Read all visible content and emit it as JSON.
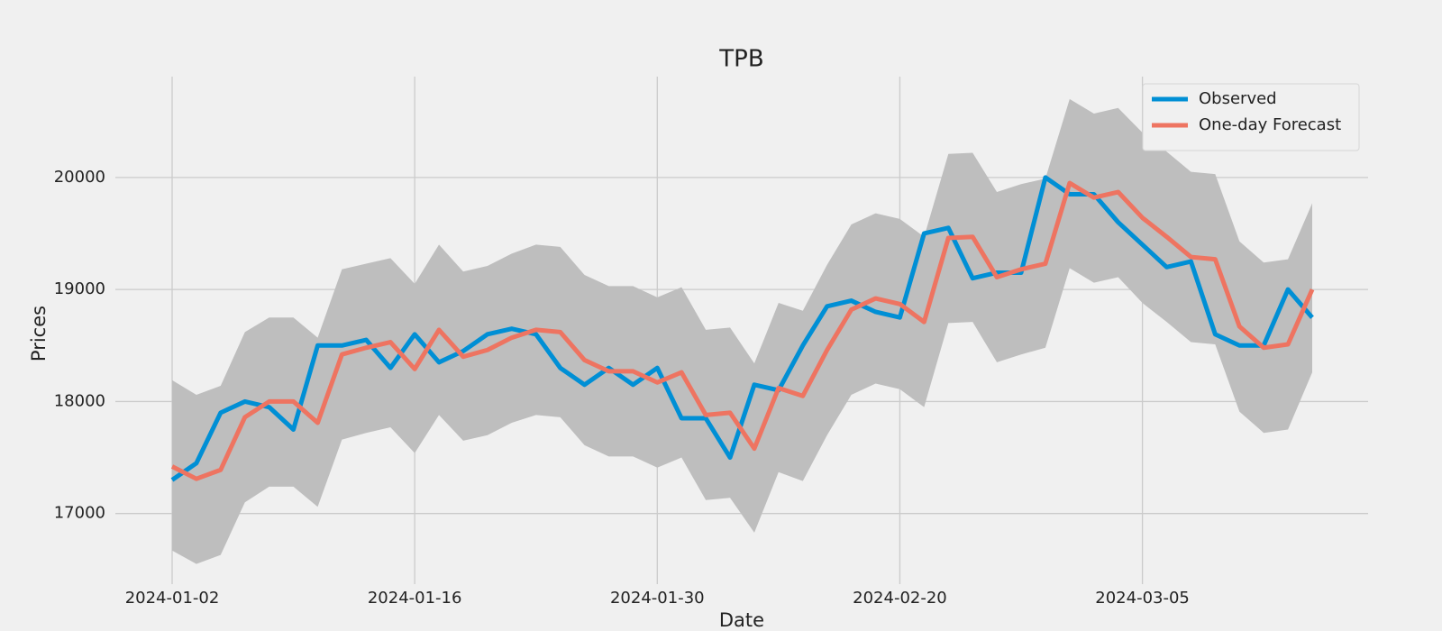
{
  "chart_data": {
    "type": "line",
    "title": "TPB",
    "x_label": "Date",
    "y_label": "Prices",
    "categories": [
      "2024-01-02",
      null,
      null,
      null,
      null,
      null,
      null,
      null,
      null,
      null,
      "2024-01-16",
      null,
      null,
      null,
      null,
      null,
      null,
      null,
      null,
      null,
      "2024-01-30",
      null,
      null,
      null,
      null,
      null,
      null,
      null,
      null,
      null,
      "2024-02-20",
      null,
      null,
      null,
      null,
      null,
      null,
      null,
      null,
      null,
      "2024-03-05",
      null,
      null,
      null,
      null,
      null,
      null,
      null
    ],
    "series": [
      {
        "name": "Observed",
        "color": "#008fd5",
        "values": [
          17300,
          17450,
          17900,
          18000,
          17950,
          17750,
          18500,
          18500,
          18550,
          18300,
          18600,
          18350,
          18450,
          18600,
          18650,
          18600,
          18300,
          18150,
          18300,
          18150,
          18300,
          17850,
          17850,
          17500,
          18150,
          18100,
          18500,
          18850,
          18900,
          18800,
          18750,
          19500,
          19550,
          19100,
          19150,
          19150,
          20000,
          19850,
          19850,
          19600,
          19400,
          19200,
          19250,
          18600,
          18500,
          18500,
          19000,
          18750
        ]
      },
      {
        "name": "One-day Forecast",
        "color": "#ee7461",
        "values": [
          17420,
          17310,
          17390,
          17860,
          18000,
          18000,
          17810,
          18420,
          18480,
          18530,
          18290,
          18640,
          18400,
          18460,
          18570,
          18640,
          18620,
          18370,
          18270,
          18270,
          18170,
          18260,
          17880,
          17900,
          17580,
          18120,
          18050,
          18460,
          18820,
          18920,
          18870,
          18710,
          19460,
          19470,
          19110,
          19180,
          19230,
          19950,
          19820,
          19870,
          19640,
          19470,
          19290,
          19270,
          18670,
          18480,
          18510,
          19000
        ]
      }
    ],
    "band": {
      "color": "#bebebe",
      "upper": [
        18190,
        18060,
        18140,
        18620,
        18750,
        18750,
        18570,
        19180,
        19230,
        19280,
        19050,
        19400,
        19160,
        19210,
        19320,
        19400,
        19380,
        19130,
        19030,
        19030,
        18930,
        19020,
        18640,
        18660,
        18340,
        18880,
        18810,
        19220,
        19580,
        19680,
        19630,
        19470,
        20210,
        20220,
        19870,
        19940,
        19990,
        20700,
        20570,
        20620,
        20400,
        20230,
        20050,
        20030,
        19430,
        19240,
        19270,
        19770
      ],
      "lower": [
        16670,
        16550,
        16630,
        17100,
        17240,
        17240,
        17060,
        17660,
        17720,
        17770,
        17540,
        17880,
        17650,
        17700,
        17810,
        17880,
        17860,
        17610,
        17510,
        17510,
        17410,
        17500,
        17120,
        17140,
        16830,
        17370,
        17290,
        17700,
        18060,
        18160,
        18110,
        17950,
        18700,
        18710,
        18350,
        18420,
        18480,
        19190,
        19060,
        19110,
        18880,
        18710,
        18530,
        18510,
        17910,
        17720,
        17750,
        18260
      ]
    },
    "ylim": [
      16370,
      20900
    ],
    "yticks": [
      17000,
      18000,
      19000,
      20000
    ],
    "grid": true,
    "legend": "upper right"
  }
}
